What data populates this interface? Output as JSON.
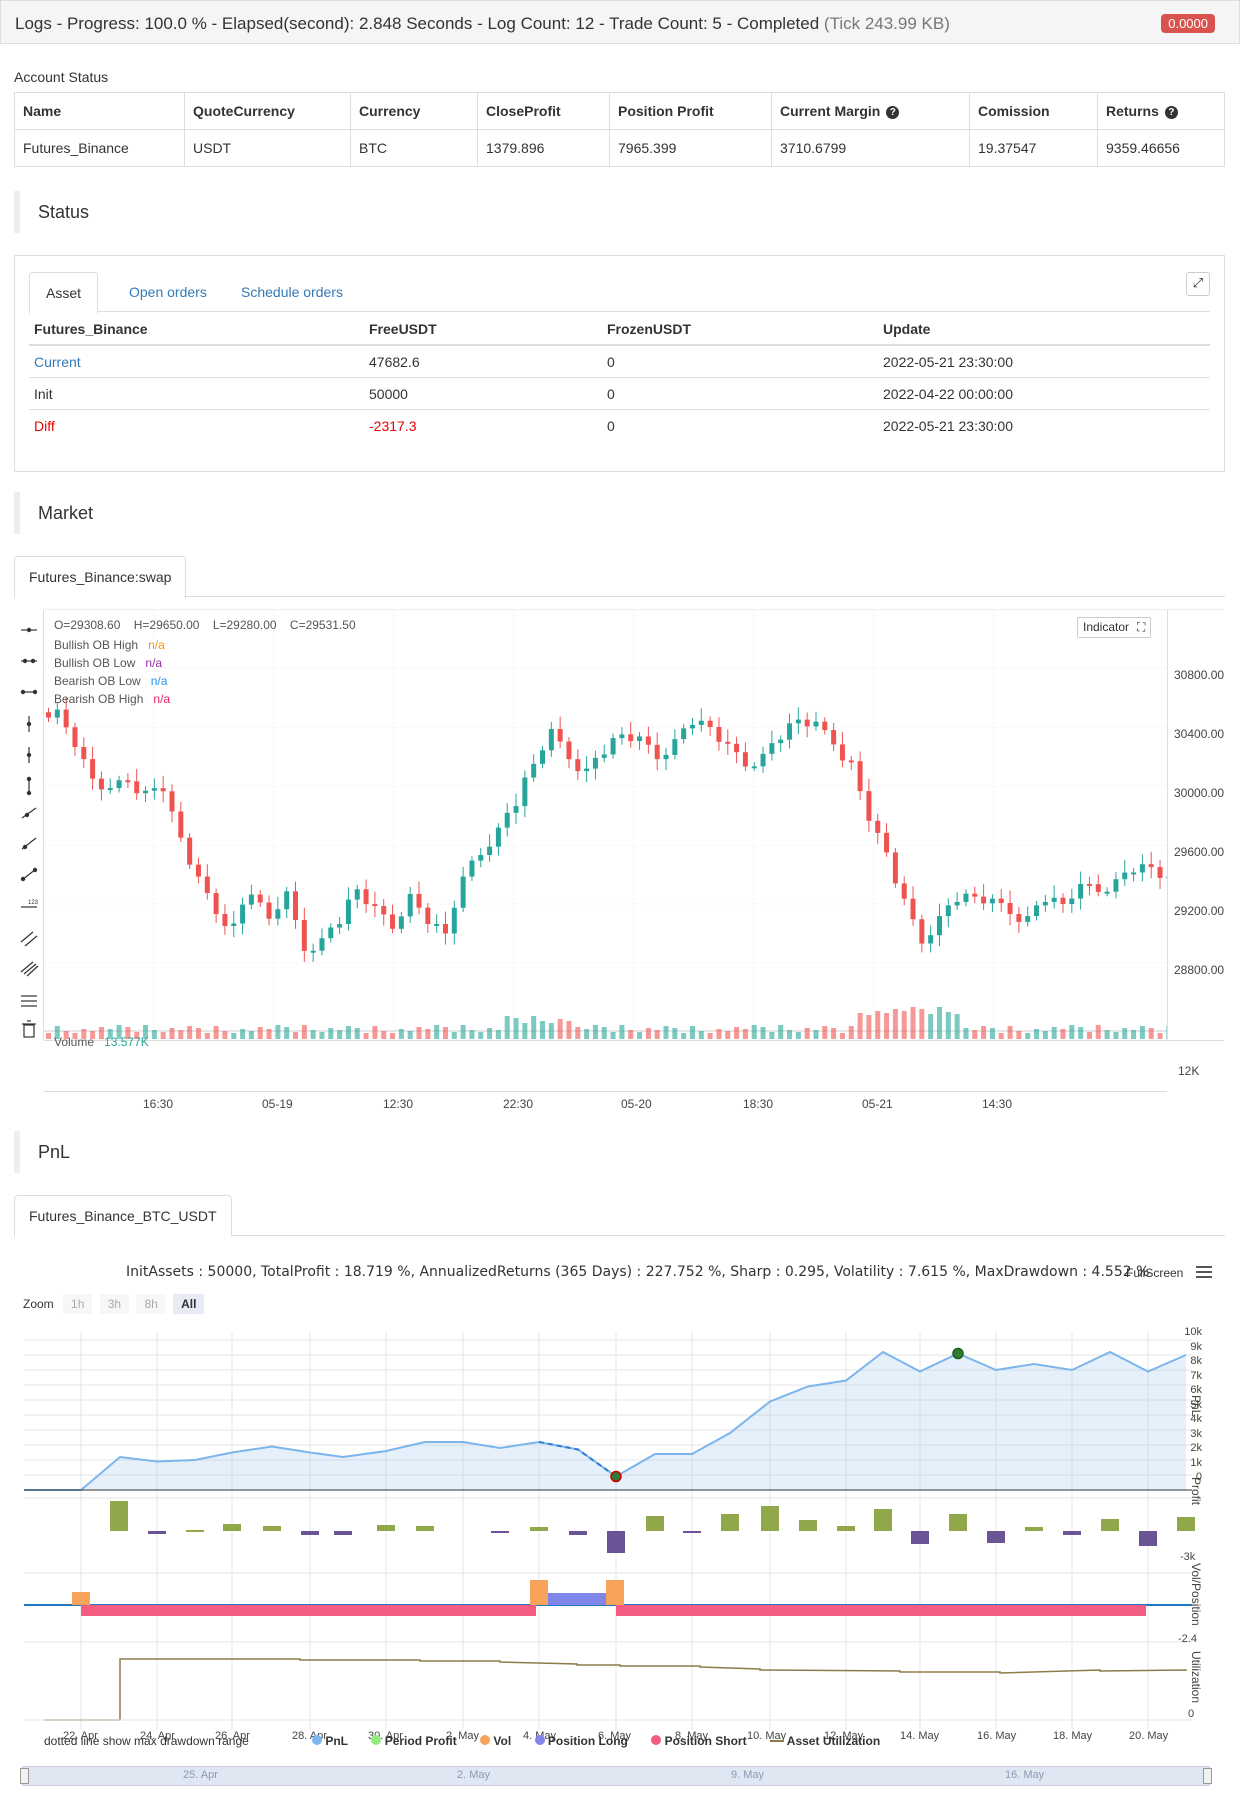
{
  "topbar": {
    "title": "Logs - Progress: 100.0 % - Elapsed(second): 2.848 Seconds - Log Count: 12 - Trade Count: 5 - Completed",
    "tick": "(Tick 243.99 KB)",
    "badge": "0.0000"
  },
  "account": {
    "label": "Account Status",
    "headers": [
      "Name",
      "QuoteCurrency",
      "Currency",
      "CloseProfit",
      "Position Profit",
      "Current Margin",
      "Comission",
      "Returns"
    ],
    "row": [
      "Futures_Binance",
      "USDT",
      "BTC",
      "1379.896",
      "7965.399",
      "3710.6799",
      "19.37547",
      "9359.46656"
    ]
  },
  "status": {
    "title": "Status",
    "tabs": [
      "Asset",
      "Open orders",
      "Schedule orders"
    ],
    "headers": [
      "Futures_Binance",
      "FreeUSDT",
      "FrozenUSDT",
      "Update"
    ],
    "rows": [
      [
        "Current",
        "47682.6",
        "0",
        "2022-05-21 23:30:00"
      ],
      [
        "Init",
        "50000",
        "0",
        "2022-04-22 00:00:00"
      ],
      [
        "Diff",
        "-2317.3",
        "0",
        "2022-05-21 23:30:00"
      ]
    ]
  },
  "market": {
    "title": "Market",
    "tab": "Futures_Binance:swap",
    "ohlc": {
      "o": "O=29308.60",
      "h": "H=29650.00",
      "l": "L=29280.00",
      "c": "C=29531.50"
    },
    "indicator_button": "Indicator",
    "legend": [
      {
        "name": "Bullish OB High",
        "value": "n/a",
        "color": "#ff9800"
      },
      {
        "name": "Bullish OB Low",
        "value": "n/a",
        "color": "#9c27b0"
      },
      {
        "name": "Bearish OB Low",
        "value": "n/a",
        "color": "#2196f3"
      },
      {
        "name": "Bearish OB High",
        "value": "n/a",
        "color": "#e91e63"
      }
    ],
    "volume_label": "Volume",
    "volume_value": "13.577K",
    "price_ticks": [
      "30800.00",
      "30400.00",
      "30000.00",
      "29600.00",
      "29200.00",
      "28800.00"
    ],
    "volume_tick": "12K",
    "time_ticks": [
      "16:30",
      "05-19",
      "12:30",
      "22:30",
      "05-20",
      "18:30",
      "05-21",
      "14:30"
    ],
    "colors": {
      "up": "#26a69a",
      "down": "#ef5350"
    }
  },
  "pnl": {
    "title": "PnL",
    "tab": "Futures_Binance_BTC_USDT",
    "summary": "InitAssets : 50000, TotalProfit : 18.719 %, AnnualizedReturns (365 Days) : 227.752 %, Sharp : 0.295, Volatility : 7.615 %, MaxDrawdown : 4.552 %",
    "fullscreen": "FullScreen",
    "zoom_label": "Zoom",
    "zoom_buttons": [
      "1h",
      "3h",
      "8h",
      "All"
    ],
    "pnl_ticks": [
      "10k",
      "9k",
      "8k",
      "7k",
      "6k",
      "5k",
      "4k",
      "3k",
      "2k",
      "1k",
      "0"
    ],
    "profit_tick": "-3k",
    "vol_tick": "-2.4",
    "util_tick": "0",
    "axis_titles": [
      "PnL",
      "Profit",
      "Vol/Position",
      "Utilization"
    ],
    "date_ticks": [
      "22. Apr",
      "24. Apr",
      "26. Apr",
      "28. Apr",
      "30. Apr",
      "2. May",
      "4. May",
      "6. May",
      "8. May",
      "10. May",
      "12. May",
      "14. May",
      "16. May",
      "18. May",
      "20. May"
    ],
    "note": "dotted line show max drawdown range",
    "legend": [
      {
        "name": "PnL",
        "color": "#7cb5ec"
      },
      {
        "name": "Period Profit",
        "color": "#90ed7d"
      },
      {
        "name": "Vol",
        "color": "#f7a35c"
      },
      {
        "name": "Position Long",
        "color": "#8085e9"
      },
      {
        "name": "Position Short",
        "color": "#f15c80"
      },
      {
        "name": "Asset Utilization",
        "color": "#8d7b4a"
      }
    ],
    "navigator_ticks": [
      "25. Apr",
      "2. May",
      "9. May",
      "16. May"
    ]
  },
  "chart_data": [
    {
      "type": "line",
      "title": "",
      "x": [
        "22. Apr",
        "24. Apr",
        "26. Apr",
        "28. Apr",
        "30. Apr",
        "2. May",
        "4. May",
        "6. May",
        "8. May",
        "10. May",
        "12. May",
        "14. May",
        "16. May",
        "18. May",
        "20. May"
      ],
      "series": [
        {
          "name": "PnL",
          "values": [
            0,
            2200,
            2200,
            2800,
            2400,
            3200,
            3100,
            900,
            2400,
            6000,
            7200,
            9200,
            8600,
            8700,
            9400
          ]
        }
      ],
      "ylim": [
        0,
        10000
      ]
    }
  ]
}
